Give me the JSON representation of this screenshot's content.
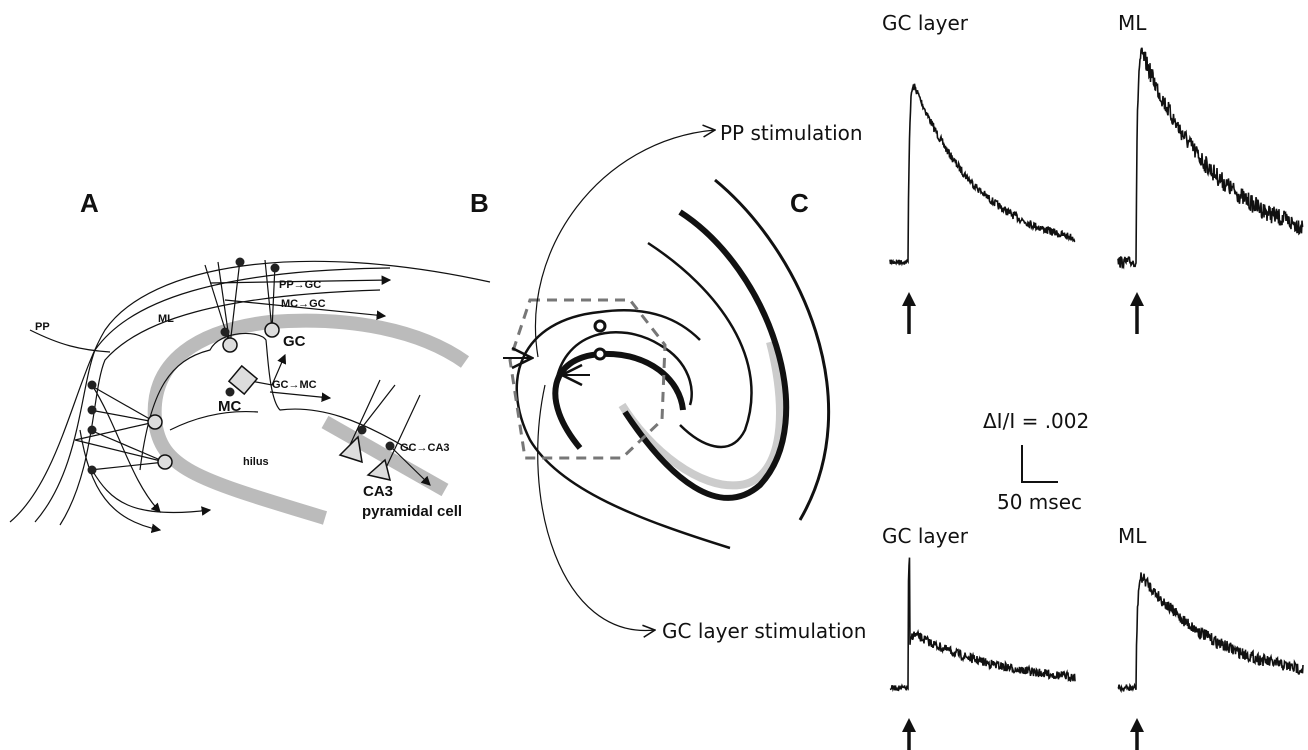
{
  "panel_labels": [
    "A",
    "B",
    "C"
  ],
  "panel_a": {
    "pp": "PP",
    "ml": "ML",
    "gc": "GC",
    "mc": "MC",
    "hilus": "hilus",
    "ca3": "CA3",
    "pyramidal": "pyramidal cell",
    "pathways": [
      "PP→GC",
      "MC→GC",
      "GC→MC",
      "GC→CA3"
    ]
  },
  "panel_b": {
    "pp_stimulation": "PP stimulation",
    "gc_stimulation": "GC layer stimulation"
  },
  "panel_c": {
    "traces": [
      {
        "label": "GC layer"
      },
      {
        "label": "ML"
      },
      {
        "label": "GC layer"
      },
      {
        "label": "ML"
      }
    ],
    "scale_bar": {
      "amplitude": "ΔI/I = .002",
      "time": "50 msec"
    }
  }
}
